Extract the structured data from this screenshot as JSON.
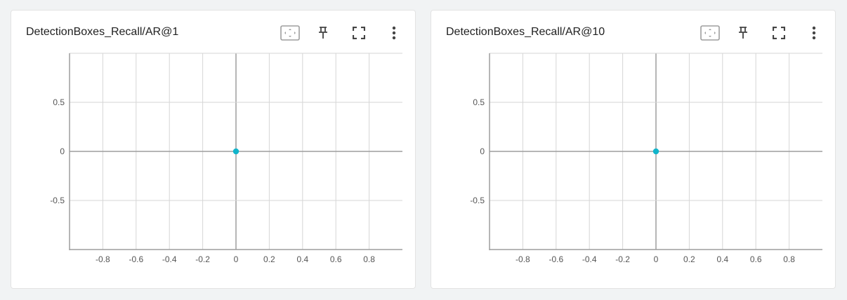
{
  "colors": {
    "point": "#12b5cb",
    "grid": "#d6d6d6",
    "axis": "#9e9e9e",
    "page_bg": "#f1f3f4"
  },
  "icons": {
    "fit": "fit-domain-icon",
    "pin": "pin-icon",
    "fullscreen": "fullscreen-icon",
    "more": "more-vert-icon"
  },
  "cards": [
    {
      "title": "DetectionBoxes_Recall/AR@1"
    },
    {
      "title": "DetectionBoxes_Recall/AR@10"
    }
  ],
  "chart_data": [
    {
      "type": "scatter",
      "title": "DetectionBoxes_Recall/AR@1",
      "xlim": [
        -1,
        1
      ],
      "ylim": [
        -1,
        1
      ],
      "x_ticks": [
        -1,
        -0.8,
        -0.6,
        -0.4,
        -0.2,
        0,
        0.2,
        0.4,
        0.6,
        0.8
      ],
      "x_tick_labels": [
        "",
        "-0.8",
        "-0.6",
        "-0.4",
        "-0.2",
        "0",
        "0.2",
        "0.4",
        "0.6",
        "0.8"
      ],
      "y_ticks": [
        1,
        0.5,
        0,
        -0.5,
        -1
      ],
      "y_tick_labels": [
        "",
        "0.5",
        "0",
        "-0.5",
        ""
      ],
      "grid": true,
      "series": [
        {
          "x": [
            0
          ],
          "y": [
            0
          ]
        }
      ]
    },
    {
      "type": "scatter",
      "title": "DetectionBoxes_Recall/AR@10",
      "xlim": [
        -1,
        1
      ],
      "ylim": [
        -1,
        1
      ],
      "x_ticks": [
        -1,
        -0.8,
        -0.6,
        -0.4,
        -0.2,
        0,
        0.2,
        0.4,
        0.6,
        0.8
      ],
      "x_tick_labels": [
        "",
        "-0.8",
        "-0.6",
        "-0.4",
        "-0.2",
        "0",
        "0.2",
        "0.4",
        "0.6",
        "0.8"
      ],
      "y_ticks": [
        1,
        0.5,
        0,
        -0.5,
        -1
      ],
      "y_tick_labels": [
        "",
        "0.5",
        "0",
        "-0.5",
        ""
      ],
      "grid": true,
      "series": [
        {
          "x": [
            0
          ],
          "y": [
            0
          ]
        }
      ]
    }
  ]
}
